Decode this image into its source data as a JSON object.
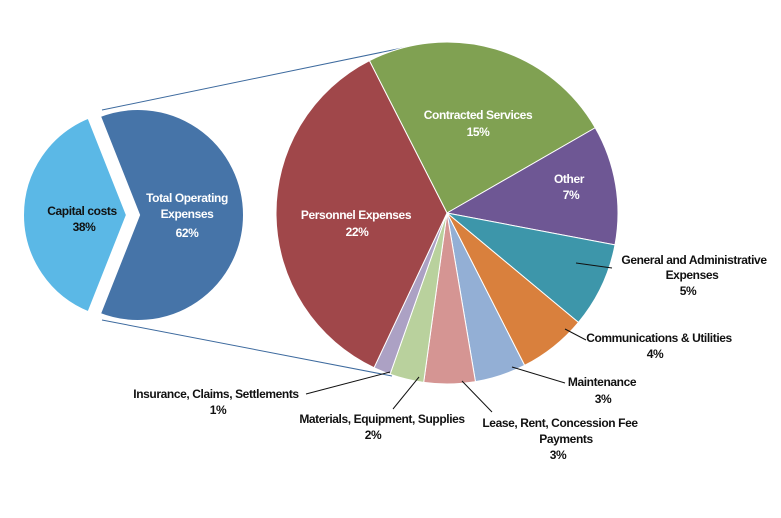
{
  "chart_data": {
    "type": "pie",
    "subtype": "pie-of-pie",
    "primary": {
      "slices": [
        {
          "name": "Capital costs",
          "value": 38,
          "label": "38%",
          "color": "#5BB8E6"
        },
        {
          "name": "Total Operating Expenses",
          "value": 62,
          "label": "62%",
          "color": "#4674A8",
          "name_lines": [
            "Total Operating",
            "Expenses"
          ]
        }
      ]
    },
    "secondary": {
      "parent": "Total Operating Expenses",
      "slices": [
        {
          "name": "Contracted Services",
          "value": 15,
          "label": "15%",
          "color": "#80A152"
        },
        {
          "name": "Other",
          "value": 7,
          "label": "7%",
          "color": "#6E5794"
        },
        {
          "name": "General and Administrative Expenses",
          "value": 5,
          "label": "5%",
          "color": "#3D96AA",
          "name_lines": [
            "General and Administrative",
            "Expenses"
          ]
        },
        {
          "name": "Communications & Utilities",
          "value": 4,
          "label": "4%",
          "color": "#D9803D"
        },
        {
          "name": "Maintenance",
          "value": 3,
          "label": "3%",
          "color": "#93AFD5"
        },
        {
          "name": "Lease, Rent, Concession Fee Payments",
          "value": 3,
          "label": "3%",
          "color": "#D59593",
          "name_lines": [
            "Lease, Rent, Concession Fee",
            "Payments"
          ]
        },
        {
          "name": "Materials, Equipment, Supplies",
          "value": 2,
          "label": "2%",
          "color": "#B9D19D"
        },
        {
          "name": "Insurance, Claims, Settlements",
          "value": 1,
          "label": "1%",
          "color": "#ACA1C4"
        },
        {
          "name": "Personnel Expenses",
          "value": 22,
          "label": "22%",
          "color": "#A0474A"
        }
      ]
    },
    "title": "",
    "legend": "none"
  }
}
